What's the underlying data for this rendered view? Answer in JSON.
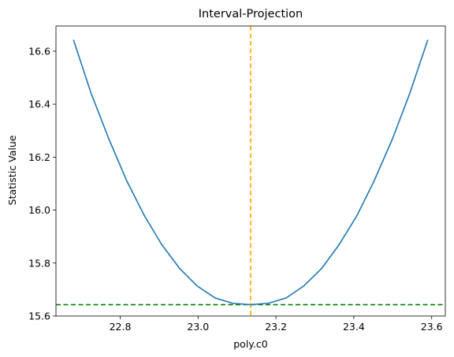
{
  "chart_data": {
    "type": "line",
    "title": "Interval-Projection",
    "xlabel": "poly.c0",
    "ylabel": "Statistic Value",
    "xlim": [
      22.635,
      23.635
    ],
    "ylim": [
      15.6,
      16.695
    ],
    "x_ticks": [
      22.8,
      23.0,
      23.2,
      23.4,
      23.6
    ],
    "x_tick_labels": [
      "22.8",
      "23.0",
      "23.2",
      "23.4",
      "23.6"
    ],
    "y_ticks": [
      15.6,
      15.8,
      16.0,
      16.2,
      16.4,
      16.6
    ],
    "y_tick_labels": [
      "15.6",
      "15.8",
      "16.0",
      "16.2",
      "16.4",
      "16.6"
    ],
    "grid": false,
    "series": [
      {
        "color": "#1f77b4",
        "x": [
          22.68,
          22.725,
          22.771,
          22.816,
          22.862,
          22.907,
          22.953,
          22.998,
          23.044,
          23.089,
          23.135,
          23.18,
          23.226,
          23.271,
          23.317,
          23.362,
          23.408,
          23.453,
          23.499,
          23.544,
          23.59
        ],
        "y": [
          16.643,
          16.442,
          16.268,
          16.113,
          15.979,
          15.869,
          15.779,
          15.713,
          15.668,
          15.648,
          15.643,
          15.648,
          15.668,
          15.713,
          15.779,
          15.869,
          15.979,
          16.113,
          16.268,
          16.442,
          16.643
        ]
      }
    ],
    "reference_lines": [
      {
        "orientation": "vertical",
        "value": 23.135,
        "color": "#ffa500",
        "style": "dashed"
      },
      {
        "orientation": "horizontal",
        "value": 15.643,
        "color": "#008000",
        "style": "dashed"
      }
    ]
  }
}
